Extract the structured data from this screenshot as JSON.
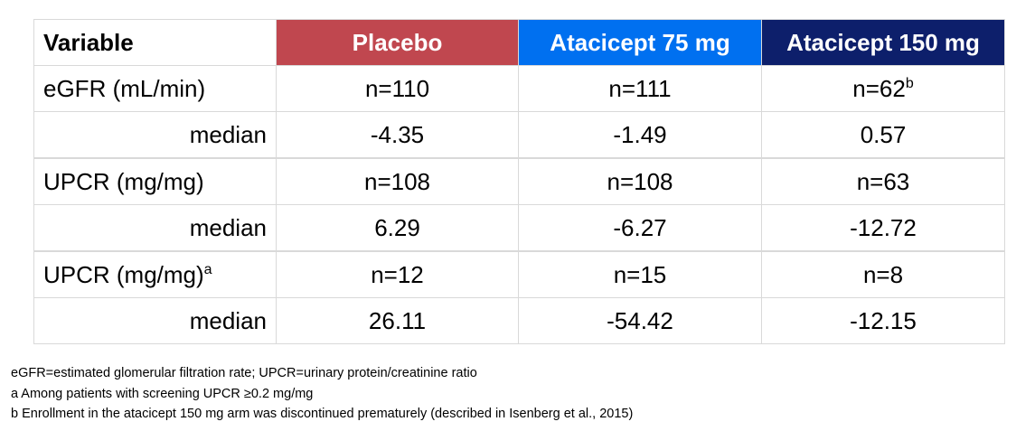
{
  "colors": {
    "placebo_header": "#c0474f",
    "atacicept75_header": "#0070f0",
    "atacicept150_header": "#0d1f6b",
    "grid": "#d9d9d9"
  },
  "table": {
    "headers": {
      "variable": "Variable",
      "placebo": "Placebo",
      "atacicept75": "Atacicept 75 mg",
      "atacicept150": "Atacicept 150 mg"
    },
    "rows": [
      {
        "label": "eGFR (mL/min)",
        "label_sup": "",
        "placebo": "n=110",
        "atacicept75": "n=111",
        "atacicept150": "n=62",
        "atacicept150_sup": "b"
      },
      {
        "label": "median",
        "label_sup": "",
        "placebo": "-4.35",
        "atacicept75": "-1.49",
        "atacicept150": "0.57",
        "atacicept150_sup": ""
      },
      {
        "label": "UPCR (mg/mg)",
        "label_sup": "",
        "placebo": "n=108",
        "atacicept75": "n=108",
        "atacicept150": "n=63",
        "atacicept150_sup": ""
      },
      {
        "label": "median",
        "label_sup": "",
        "placebo": "6.29",
        "atacicept75": "-6.27",
        "atacicept150": "-12.72",
        "atacicept150_sup": ""
      },
      {
        "label": "UPCR (mg/mg)",
        "label_sup": "a",
        "placebo": "n=12",
        "atacicept75": "n=15",
        "atacicept150": "n=8",
        "atacicept150_sup": ""
      },
      {
        "label": "median",
        "label_sup": "",
        "placebo": "26.11",
        "atacicept75": "-54.42",
        "atacicept150": "-12.15",
        "atacicept150_sup": ""
      }
    ]
  },
  "footnotes": [
    "eGFR=estimated glomerular filtration rate; UPCR=urinary protein/creatinine ratio",
    "a Among patients with screening UPCR ≥0.2 mg/mg",
    "b Enrollment in the atacicept 150 mg arm was discontinued prematurely (described in Isenberg et al., 2015)"
  ]
}
